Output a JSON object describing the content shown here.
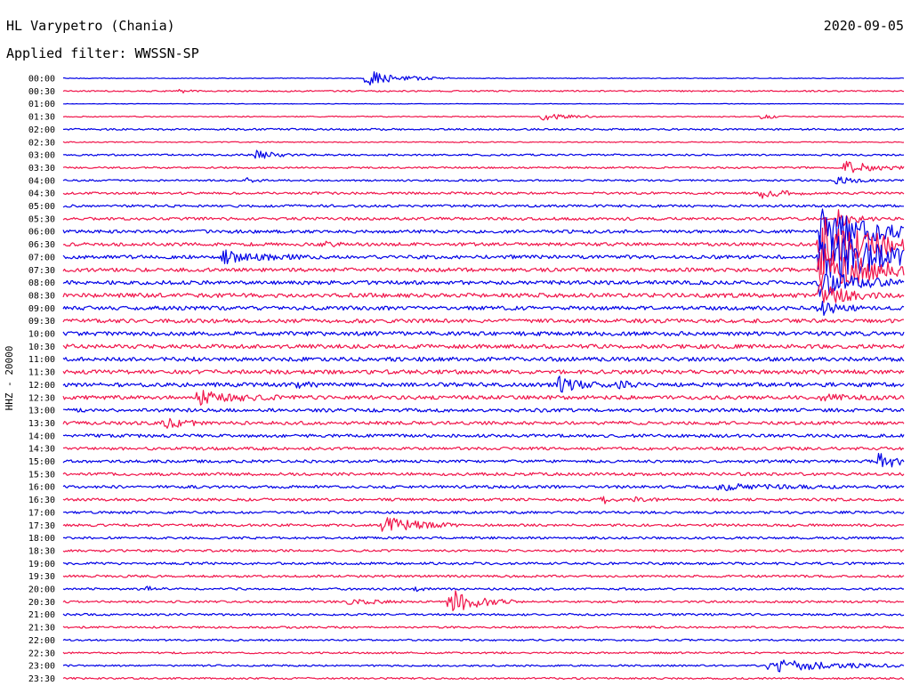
{
  "header": {
    "station": "HL Varypetro (Chania)",
    "date": "2020-09-05",
    "filter": "Applied filter: WWSSN-SP"
  },
  "colors": {
    "trace_a": "#0000e6",
    "trace_b": "#f0144a",
    "text": "#000000"
  },
  "chart_data": {
    "type": "helicorder",
    "ylabel": "HHZ - 20000",
    "row_labels": [
      "00:00",
      "00:30",
      "01:00",
      "01:30",
      "02:00",
      "02:30",
      "03:00",
      "03:30",
      "04:00",
      "04:30",
      "05:00",
      "05:30",
      "06:00",
      "06:30",
      "07:00",
      "07:30",
      "08:00",
      "08:30",
      "09:00",
      "09:30",
      "10:00",
      "10:30",
      "11:00",
      "11:30",
      "12:00",
      "12:30",
      "13:00",
      "13:30",
      "14:00",
      "14:30",
      "15:00",
      "15:30",
      "16:00",
      "16:30",
      "17:00",
      "17:30",
      "18:00",
      "18:30",
      "19:00",
      "19:30",
      "20:00",
      "20:30",
      "21:00",
      "21:30",
      "22:00",
      "22:30",
      "23:00",
      "23:30"
    ],
    "row_noise": [
      0.4,
      0.8,
      0.3,
      0.6,
      1.0,
      0.6,
      1.0,
      1.0,
      1.0,
      1.3,
      1.4,
      1.6,
      1.8,
      1.9,
      2.0,
      2.1,
      2.2,
      2.4,
      2.2,
      2.2,
      2.3,
      2.3,
      2.3,
      2.3,
      2.3,
      2.2,
      2.0,
      1.9,
      1.8,
      1.7,
      1.6,
      1.7,
      1.6,
      1.5,
      1.4,
      1.4,
      1.3,
      1.3,
      1.4,
      1.3,
      1.2,
      1.2,
      1.2,
      1.1,
      1.0,
      1.0,
      1.0,
      1.0
    ],
    "events": [
      {
        "row": 0,
        "pos": 0.36,
        "amp": 9,
        "dur": 0.04
      },
      {
        "row": 1,
        "pos": 0.14,
        "amp": 2,
        "dur": 0.01
      },
      {
        "row": 3,
        "pos": 0.57,
        "amp": 4,
        "dur": 0.03
      },
      {
        "row": 3,
        "pos": 0.83,
        "amp": 3,
        "dur": 0.015
      },
      {
        "row": 6,
        "pos": 0.23,
        "amp": 5,
        "dur": 0.02
      },
      {
        "row": 7,
        "pos": 0.93,
        "amp": 8,
        "dur": 0.03
      },
      {
        "row": 8,
        "pos": 0.22,
        "amp": 3,
        "dur": 0.01
      },
      {
        "row": 8,
        "pos": 0.92,
        "amp": 4,
        "dur": 0.02
      },
      {
        "row": 9,
        "pos": 0.83,
        "amp": 5,
        "dur": 0.025
      },
      {
        "row": 11,
        "pos": 0.92,
        "amp": 10,
        "dur": 0.02
      },
      {
        "row": 12,
        "pos": 0.9,
        "amp": 26,
        "dur": 0.06
      },
      {
        "row": 13,
        "pos": 0.31,
        "amp": 3,
        "dur": 0.015
      },
      {
        "row": 13,
        "pos": 0.9,
        "amp": 34,
        "dur": 0.07
      },
      {
        "row": 14,
        "pos": 0.19,
        "amp": 7,
        "dur": 0.04
      },
      {
        "row": 14,
        "pos": 0.9,
        "amp": 30,
        "dur": 0.08
      },
      {
        "row": 15,
        "pos": 0.9,
        "amp": 25,
        "dur": 0.07
      },
      {
        "row": 16,
        "pos": 0.9,
        "amp": 16,
        "dur": 0.04
      },
      {
        "row": 17,
        "pos": 0.9,
        "amp": 12,
        "dur": 0.03
      },
      {
        "row": 18,
        "pos": 0.9,
        "amp": 8,
        "dur": 0.02
      },
      {
        "row": 24,
        "pos": 0.28,
        "amp": 4,
        "dur": 0.01
      },
      {
        "row": 24,
        "pos": 0.59,
        "amp": 8,
        "dur": 0.025
      },
      {
        "row": 24,
        "pos": 0.66,
        "amp": 4,
        "dur": 0.015
      },
      {
        "row": 25,
        "pos": 0.16,
        "amp": 7,
        "dur": 0.04
      },
      {
        "row": 25,
        "pos": 0.9,
        "amp": 3,
        "dur": 0.03
      },
      {
        "row": 27,
        "pos": 0.12,
        "amp": 7,
        "dur": 0.02
      },
      {
        "row": 30,
        "pos": 0.97,
        "amp": 8,
        "dur": 0.03
      },
      {
        "row": 32,
        "pos": 0.78,
        "amp": 3,
        "dur": 0.06
      },
      {
        "row": 33,
        "pos": 0.64,
        "amp": 5,
        "dur": 0.01
      },
      {
        "row": 33,
        "pos": 0.68,
        "amp": 2,
        "dur": 0.02
      },
      {
        "row": 35,
        "pos": 0.38,
        "amp": 9,
        "dur": 0.04
      },
      {
        "row": 40,
        "pos": 0.1,
        "amp": 3,
        "dur": 0.01
      },
      {
        "row": 40,
        "pos": 0.42,
        "amp": 2,
        "dur": 0.01
      },
      {
        "row": 41,
        "pos": 0.34,
        "amp": 3,
        "dur": 0.03
      },
      {
        "row": 41,
        "pos": 0.46,
        "amp": 15,
        "dur": 0.03
      },
      {
        "row": 46,
        "pos": 0.84,
        "amp": 7,
        "dur": 0.07
      }
    ]
  }
}
